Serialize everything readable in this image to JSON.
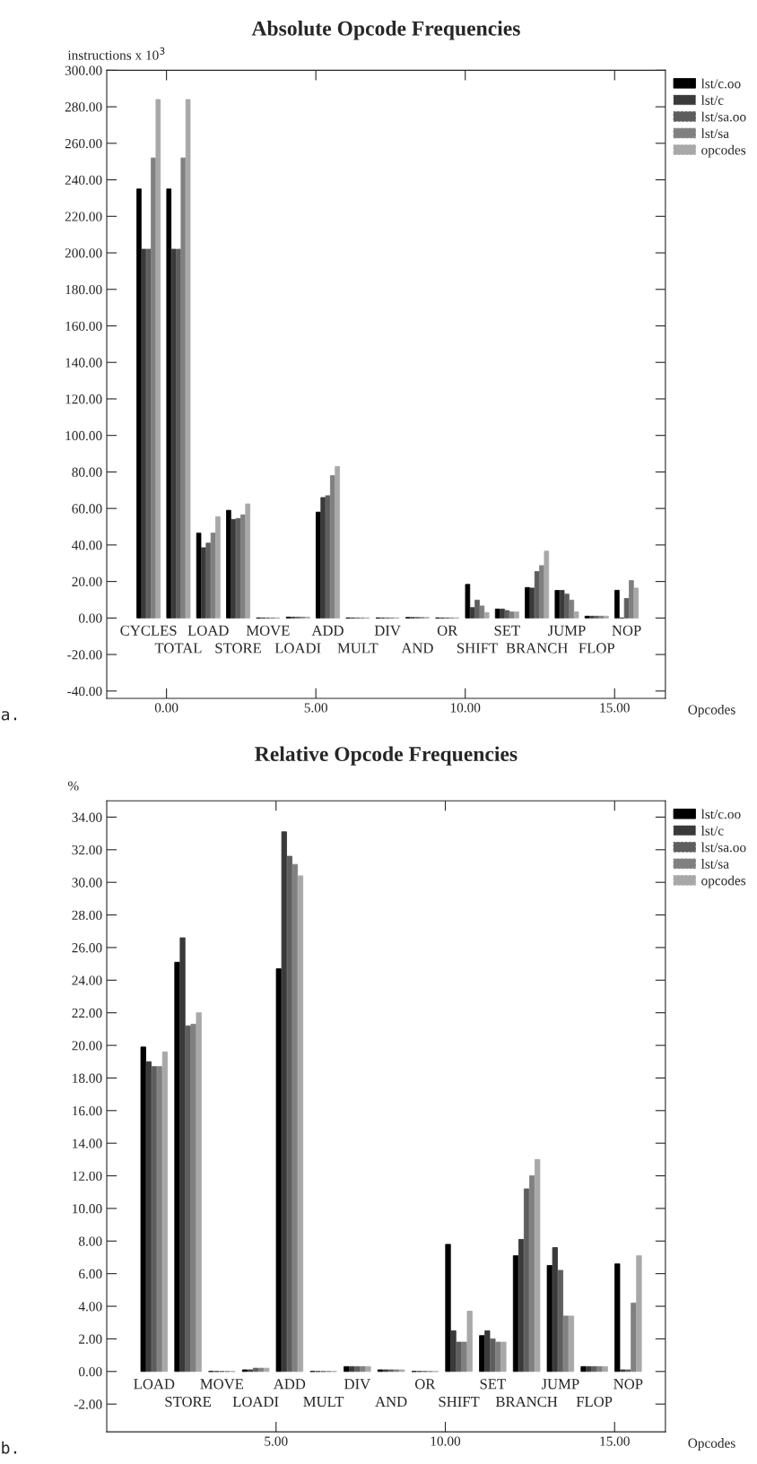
{
  "chart_data": [
    {
      "type": "bar",
      "title": "Absolute Opcode Frequencies",
      "ylabel": "instructions x 10$^{3}$",
      "xlabel": "Opcodes",
      "annotations": [
        "a.",
        "CYCLES",
        "TOTAL",
        "LOAD",
        "STORE",
        "MOVE",
        "LOADI",
        "ADD",
        "MULT",
        "DIV",
        "AND",
        "OR",
        "SHIFT",
        "SET",
        "BRANCH",
        "JUMP",
        "FLOP",
        "NOP"
      ],
      "x": [
        -0.6,
        0.4,
        1.4,
        2.4,
        3.4,
        4.4,
        5.4,
        6.4,
        7.4,
        8.4,
        9.4,
        10.4,
        11.4,
        12.4,
        13.4,
        14.4,
        15.4
      ],
      "series": [
        {
          "name": "lst/c.oo",
          "color": "#000000",
          "line_style": "solid",
          "values": [
            235,
            235,
            46.5,
            59,
            0,
            0.5,
            58,
            0,
            0,
            0.3,
            0,
            18.4,
            4.9,
            16.7,
            15.1,
            1,
            15.2
          ]
        },
        {
          "name": "lst/c",
          "color": "#3a3a3a",
          "line_style": "dotted",
          "values": [
            202,
            202,
            38.5,
            54,
            0,
            0.5,
            66,
            0,
            0,
            0.3,
            0,
            5.7,
            4.9,
            16.4,
            15.1,
            1,
            0
          ]
        },
        {
          "name": "lst/sa.oo",
          "color": "#5e5e5e",
          "line_style": "dashed",
          "values": [
            202,
            202,
            41,
            54.5,
            0,
            0.5,
            67,
            0,
            0,
            0.3,
            0,
            9.8,
            4.1,
            25.4,
            13.1,
            1,
            10.7
          ]
        },
        {
          "name": "lst/sa",
          "color": "#808080",
          "line_style": "dashed",
          "values": [
            252,
            252,
            46.5,
            56.5,
            0,
            0.5,
            78,
            0,
            0,
            0.3,
            0,
            6.6,
            3.3,
            28.7,
            9.8,
            1,
            20.5
          ]
        },
        {
          "name": "opcodes",
          "color": "#a8a8a8",
          "line_style": "dashed",
          "values": [
            284,
            284,
            55.5,
            62.5,
            0,
            0.5,
            83,
            0,
            0,
            0.3,
            0,
            3,
            3.3,
            36.6,
            3.3,
            1,
            16.4
          ]
        }
      ],
      "xlim": [
        -2,
        16.7
      ],
      "ylim": [
        -44,
        300
      ],
      "xticks": [
        {
          "value": 0,
          "label": "0.00"
        },
        {
          "value": 5,
          "label": "5.00"
        },
        {
          "value": 10,
          "label": "10.00"
        },
        {
          "value": 15,
          "label": "15.00"
        }
      ],
      "yticks": [
        {
          "value": -40,
          "label": "-40.00"
        },
        {
          "value": -20,
          "label": "-20.00"
        },
        {
          "value": 0,
          "label": "0.00"
        },
        {
          "value": 20,
          "label": "20.00"
        },
        {
          "value": 40,
          "label": "40.00"
        },
        {
          "value": 60,
          "label": "60.00"
        },
        {
          "value": 80,
          "label": "80.00"
        },
        {
          "value": 100,
          "label": "100.00"
        },
        {
          "value": 120,
          "label": "120.00"
        },
        {
          "value": 140,
          "label": "140.00"
        },
        {
          "value": 160,
          "label": "160.00"
        },
        {
          "value": 180,
          "label": "180.00"
        },
        {
          "value": 200,
          "label": "200.00"
        },
        {
          "value": 220,
          "label": "220.00"
        },
        {
          "value": 240,
          "label": "240.00"
        },
        {
          "value": 260,
          "label": "260.00"
        },
        {
          "value": 280,
          "label": "280.00"
        },
        {
          "value": 300,
          "label": "300.00"
        }
      ],
      "legend": "top right",
      "grid": false
    },
    {
      "type": "bar",
      "title": "Relative Opcode Frequencies",
      "ylabel": "%",
      "xlabel": "Opcodes",
      "annotations": [
        "b.",
        "LOAD",
        "STORE",
        "MOVE",
        "LOADI",
        "ADD",
        "MULT",
        "DIV",
        "AND",
        "OR",
        "SHIFT",
        "SET",
        "BRANCH",
        "JUMP",
        "FLOP",
        "NOP"
      ],
      "x": [
        1.4,
        2.4,
        3.4,
        4.4,
        5.4,
        6.4,
        7.4,
        8.4,
        9.4,
        10.4,
        11.4,
        12.4,
        13.4,
        14.4,
        15.4
      ],
      "series": [
        {
          "name": "lst/c.oo",
          "color": "#000000",
          "line_style": "solid",
          "values": [
            19.9,
            25.1,
            0,
            0.1,
            24.7,
            0,
            0.3,
            0.1,
            0,
            7.8,
            2.2,
            7.1,
            6.5,
            0.3,
            6.6
          ]
        },
        {
          "name": "lst/c",
          "color": "#3a3a3a",
          "line_style": "dotted",
          "values": [
            19.0,
            26.6,
            0,
            0.1,
            33.1,
            0,
            0.3,
            0.1,
            0,
            2.5,
            2.5,
            8.1,
            7.6,
            0.3,
            0.1
          ]
        },
        {
          "name": "lst/sa.oo",
          "color": "#5e5e5e",
          "line_style": "dashed",
          "values": [
            18.7,
            21.2,
            0,
            0.2,
            31.6,
            0,
            0.3,
            0.1,
            0,
            1.8,
            2.0,
            11.2,
            6.2,
            0.3,
            0.1
          ]
        },
        {
          "name": "lst/sa",
          "color": "#808080",
          "line_style": "dashed",
          "values": [
            18.7,
            21.3,
            0,
            0.2,
            31.1,
            0,
            0.3,
            0.1,
            0,
            1.8,
            1.8,
            12.0,
            3.4,
            0.3,
            4.2
          ]
        },
        {
          "name": "opcodes",
          "color": "#a8a8a8",
          "line_style": "dashed",
          "values": [
            19.6,
            22.0,
            0,
            0.2,
            30.4,
            0,
            0.3,
            0.1,
            0,
            3.7,
            1.8,
            13.0,
            3.4,
            0.3,
            7.1
          ]
        }
      ],
      "xlim": [
        0,
        16.5
      ],
      "ylim": [
        -3.7,
        35
      ],
      "xticks": [
        {
          "value": 5,
          "label": "5.00"
        },
        {
          "value": 10,
          "label": "10.00"
        },
        {
          "value": 15,
          "label": "15.00"
        }
      ],
      "yticks": [
        {
          "value": -2,
          "label": "-2.00"
        },
        {
          "value": 0,
          "label": "0.00"
        },
        {
          "value": 2,
          "label": "2.00"
        },
        {
          "value": 4,
          "label": "4.00"
        },
        {
          "value": 6,
          "label": "6.00"
        },
        {
          "value": 8,
          "label": "8.00"
        },
        {
          "value": 10,
          "label": "10.00"
        },
        {
          "value": 12,
          "label": "12.00"
        },
        {
          "value": 14,
          "label": "14.00"
        },
        {
          "value": 16,
          "label": "16.00"
        },
        {
          "value": 18,
          "label": "18.00"
        },
        {
          "value": 20,
          "label": "20.00"
        },
        {
          "value": 22,
          "label": "22.00"
        },
        {
          "value": 24,
          "label": "24.00"
        },
        {
          "value": 26,
          "label": "26.00"
        },
        {
          "value": 28,
          "label": "28.00"
        },
        {
          "value": 30,
          "label": "30.00"
        },
        {
          "value": 32,
          "label": "32.00"
        },
        {
          "value": 34,
          "label": "34.00"
        }
      ],
      "legend": "top right",
      "grid": false
    }
  ]
}
